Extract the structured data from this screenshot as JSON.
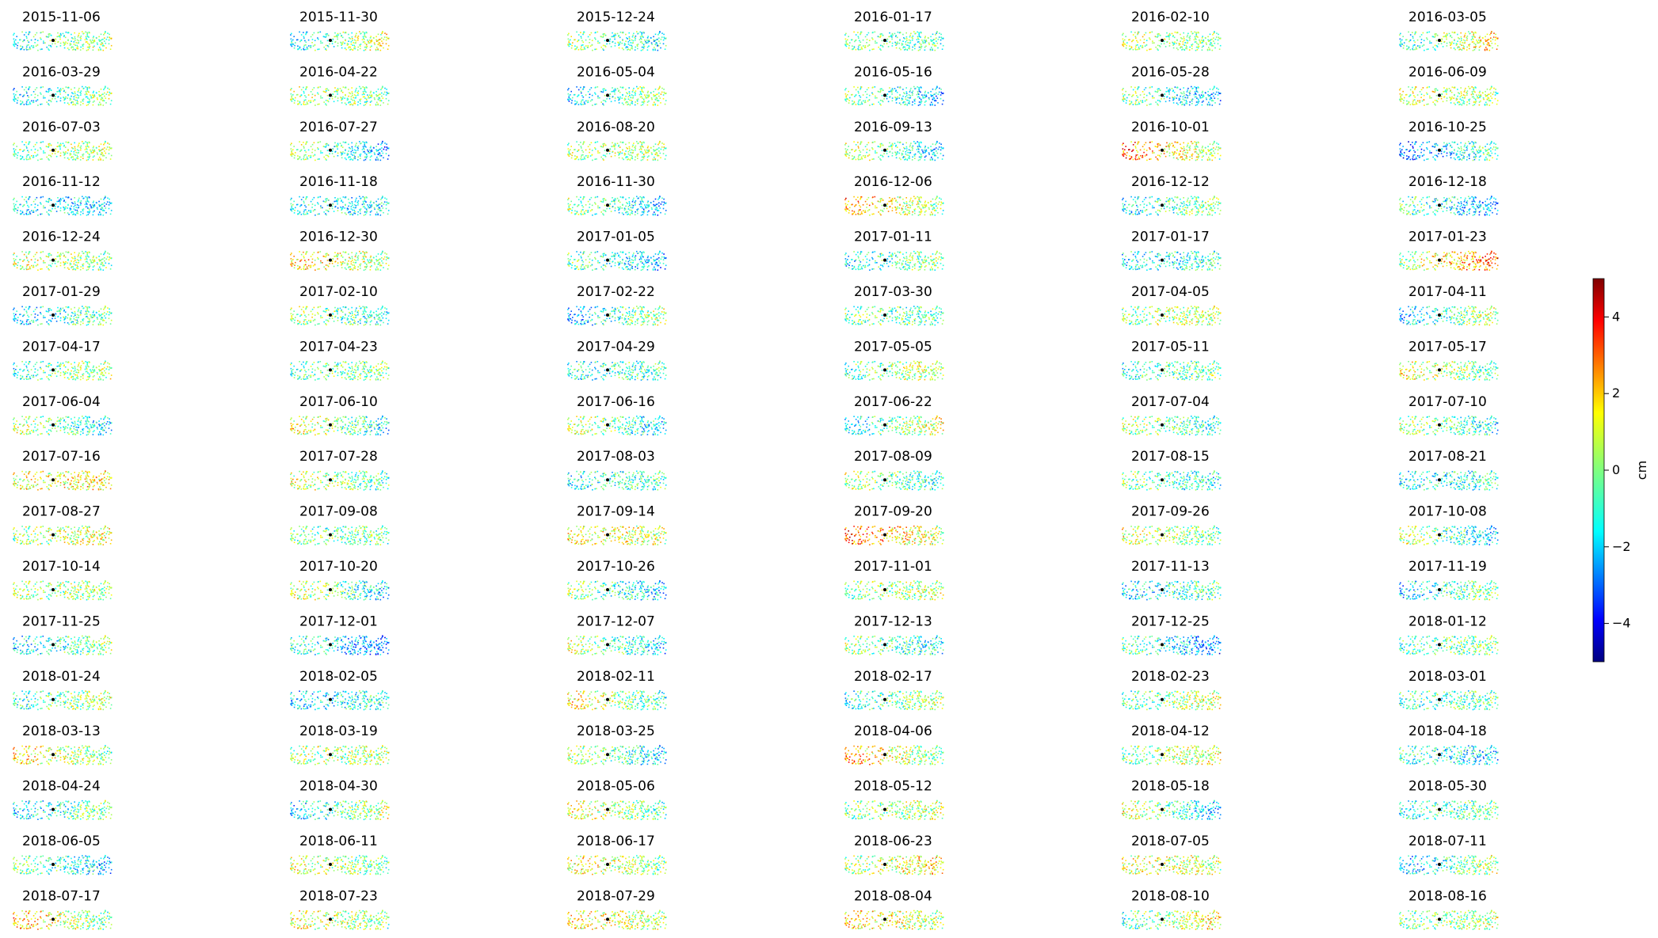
{
  "chart_data": {
    "type": "scatter",
    "grid_columns": 6,
    "colormap": "jet",
    "reference_marker_color": "#000000",
    "colorbar": {
      "label": "cm",
      "range": [
        -5,
        5
      ],
      "ticks": [
        -4,
        -2,
        0,
        2,
        4
      ],
      "tick_labels": [
        "−4",
        "−2",
        "0",
        "2",
        "4"
      ]
    },
    "panels": [
      {
        "date": "2015-11-06",
        "bias": -0.3
      },
      {
        "date": "2015-11-30",
        "bias": -0.2
      },
      {
        "date": "2015-12-24",
        "bias": -0.5
      },
      {
        "date": "2016-01-17",
        "bias": -0.4
      },
      {
        "date": "2016-02-10",
        "bias": 0.2
      },
      {
        "date": "2016-03-05",
        "bias": 0.3
      },
      {
        "date": "2016-03-29",
        "bias": -0.6
      },
      {
        "date": "2016-04-22",
        "bias": 0.1
      },
      {
        "date": "2016-05-04",
        "bias": -0.7
      },
      {
        "date": "2016-05-16",
        "bias": -0.9
      },
      {
        "date": "2016-05-28",
        "bias": -1.0
      },
      {
        "date": "2016-06-09",
        "bias": 0.5
      },
      {
        "date": "2016-07-03",
        "bias": 0.2
      },
      {
        "date": "2016-07-27",
        "bias": -0.8
      },
      {
        "date": "2016-08-20",
        "bias": 0.3
      },
      {
        "date": "2016-09-13",
        "bias": -0.5
      },
      {
        "date": "2016-10-01",
        "bias": 1.5
      },
      {
        "date": "2016-10-25",
        "bias": -1.6
      },
      {
        "date": "2016-11-12",
        "bias": -1.5
      },
      {
        "date": "2016-11-18",
        "bias": -1.2
      },
      {
        "date": "2016-11-30",
        "bias": -0.9
      },
      {
        "date": "2016-12-06",
        "bias": 1.2
      },
      {
        "date": "2016-12-12",
        "bias": -0.6
      },
      {
        "date": "2016-12-18",
        "bias": -1.3
      },
      {
        "date": "2016-12-24",
        "bias": 0.4
      },
      {
        "date": "2016-12-30",
        "bias": 1.0
      },
      {
        "date": "2017-01-05",
        "bias": -1.2
      },
      {
        "date": "2017-01-11",
        "bias": -0.6
      },
      {
        "date": "2017-01-17",
        "bias": -1.1
      },
      {
        "date": "2017-01-23",
        "bias": 1.6
      },
      {
        "date": "2017-01-29",
        "bias": -1.0
      },
      {
        "date": "2017-02-10",
        "bias": -0.3
      },
      {
        "date": "2017-02-22",
        "bias": -0.8
      },
      {
        "date": "2017-03-30",
        "bias": -0.4
      },
      {
        "date": "2017-04-05",
        "bias": 0.3
      },
      {
        "date": "2017-04-11",
        "bias": -0.7
      },
      {
        "date": "2017-04-17",
        "bias": -0.2
      },
      {
        "date": "2017-04-23",
        "bias": -0.3
      },
      {
        "date": "2017-04-29",
        "bias": -0.8
      },
      {
        "date": "2017-05-05",
        "bias": 0.1
      },
      {
        "date": "2017-05-11",
        "bias": -0.5
      },
      {
        "date": "2017-05-17",
        "bias": 0.4
      },
      {
        "date": "2017-06-04",
        "bias": -0.4
      },
      {
        "date": "2017-06-10",
        "bias": -0.1
      },
      {
        "date": "2017-06-16",
        "bias": -0.5
      },
      {
        "date": "2017-06-22",
        "bias": -0.2
      },
      {
        "date": "2017-07-04",
        "bias": -0.3
      },
      {
        "date": "2017-07-10",
        "bias": -0.4
      },
      {
        "date": "2017-07-16",
        "bias": 1.2
      },
      {
        "date": "2017-07-28",
        "bias": 0.1
      },
      {
        "date": "2017-08-03",
        "bias": -0.9
      },
      {
        "date": "2017-08-09",
        "bias": -0.3
      },
      {
        "date": "2017-08-15",
        "bias": -0.6
      },
      {
        "date": "2017-08-21",
        "bias": -1.1
      },
      {
        "date": "2017-08-27",
        "bias": 0.6
      },
      {
        "date": "2017-09-08",
        "bias": -0.3
      },
      {
        "date": "2017-09-14",
        "bias": 1.0
      },
      {
        "date": "2017-09-20",
        "bias": 1.8
      },
      {
        "date": "2017-09-26",
        "bias": 0.3
      },
      {
        "date": "2017-10-08",
        "bias": -0.5
      },
      {
        "date": "2017-10-14",
        "bias": 0.2
      },
      {
        "date": "2017-10-20",
        "bias": -0.4
      },
      {
        "date": "2017-10-26",
        "bias": -0.8
      },
      {
        "date": "2017-11-01",
        "bias": 0.2
      },
      {
        "date": "2017-11-13",
        "bias": -1.0
      },
      {
        "date": "2017-11-19",
        "bias": -0.9
      },
      {
        "date": "2017-11-25",
        "bias": -0.7
      },
      {
        "date": "2017-12-01",
        "bias": -1.7
      },
      {
        "date": "2017-12-07",
        "bias": -0.5
      },
      {
        "date": "2017-12-13",
        "bias": -0.6
      },
      {
        "date": "2017-12-25",
        "bias": -1.4
      },
      {
        "date": "2018-01-12",
        "bias": -0.4
      },
      {
        "date": "2018-01-24",
        "bias": -0.2
      },
      {
        "date": "2018-02-05",
        "bias": -1.3
      },
      {
        "date": "2018-02-11",
        "bias": 0.3
      },
      {
        "date": "2018-02-17",
        "bias": -0.3
      },
      {
        "date": "2018-02-23",
        "bias": 0.1
      },
      {
        "date": "2018-03-01",
        "bias": -0.6
      },
      {
        "date": "2018-03-13",
        "bias": 0.8
      },
      {
        "date": "2018-03-19",
        "bias": 0.3
      },
      {
        "date": "2018-03-25",
        "bias": -0.6
      },
      {
        "date": "2018-04-06",
        "bias": 1.1
      },
      {
        "date": "2018-04-12",
        "bias": 0.4
      },
      {
        "date": "2018-04-18",
        "bias": -1.2
      },
      {
        "date": "2018-04-24",
        "bias": -0.8
      },
      {
        "date": "2018-04-30",
        "bias": -0.5
      },
      {
        "date": "2018-05-06",
        "bias": 0.4
      },
      {
        "date": "2018-05-12",
        "bias": 0.2
      },
      {
        "date": "2018-05-18",
        "bias": -0.4
      },
      {
        "date": "2018-05-30",
        "bias": -0.6
      },
      {
        "date": "2018-06-05",
        "bias": -0.9
      },
      {
        "date": "2018-06-11",
        "bias": 0.3
      },
      {
        "date": "2018-06-17",
        "bias": 0.7
      },
      {
        "date": "2018-06-23",
        "bias": 0.9
      },
      {
        "date": "2018-07-05",
        "bias": 0.8
      },
      {
        "date": "2018-07-11",
        "bias": -0.7
      },
      {
        "date": "2018-07-17",
        "bias": 0.9
      },
      {
        "date": "2018-07-23",
        "bias": 0.5
      },
      {
        "date": "2018-07-29",
        "bias": 0.9
      },
      {
        "date": "2018-08-04",
        "bias": 1.0
      },
      {
        "date": "2018-08-10",
        "bias": 0.4
      },
      {
        "date": "2018-08-16",
        "bias": 0.1
      }
    ]
  }
}
